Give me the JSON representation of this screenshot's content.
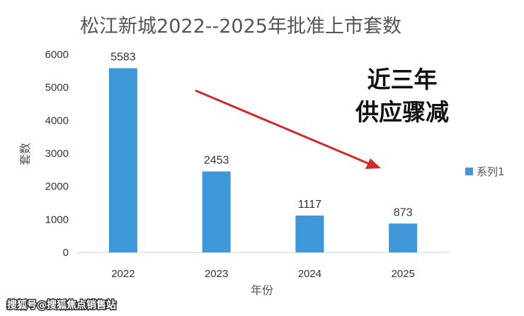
{
  "chart_data": {
    "type": "bar",
    "title": "松江新城2022--2025年批准上市套数",
    "xlabel": "年份",
    "ylabel": "套数",
    "categories": [
      "2022",
      "2023",
      "2024",
      "2025"
    ],
    "series": [
      {
        "name": "系列1",
        "values": [
          5583,
          2453,
          1117,
          873
        ]
      }
    ],
    "data_labels": [
      "5583",
      "2453",
      "1117",
      "873"
    ],
    "ylim": [
      0,
      6000
    ],
    "yticks": [
      0,
      1000,
      2000,
      3000,
      4000,
      5000,
      6000
    ],
    "grid": false,
    "legend_position": "right",
    "bar_color": "#3E97D8",
    "annotation": {
      "lines": [
        "近三年",
        "供应骤减"
      ],
      "arrow_color": "#D02A2A"
    }
  },
  "watermark": "搜狐号@搜狐焦点销售站"
}
